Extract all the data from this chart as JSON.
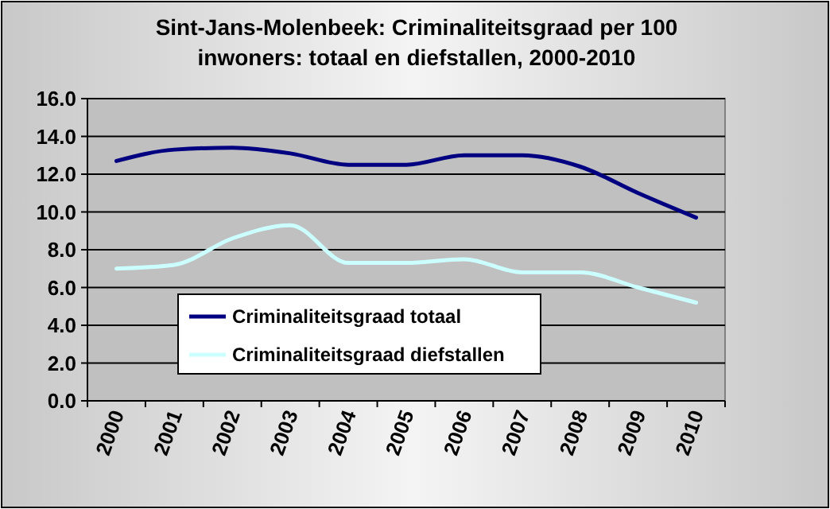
{
  "chart_data": {
    "type": "line",
    "title": "Sint-Jans-Molenbeek: Criminaliteitsgraad per 100 inwoners: totaal en diefstallen, 2000-2010",
    "categories": [
      "2000",
      "2001",
      "2002",
      "2003",
      "2004",
      "2005",
      "2006",
      "2007",
      "2008",
      "2009",
      "2010"
    ],
    "series": [
      {
        "name": "Criminaliteitsgraad totaal",
        "color": "#000080",
        "values": [
          12.7,
          13.3,
          13.4,
          13.1,
          12.5,
          12.5,
          13.0,
          13.0,
          12.4,
          11.0,
          9.7
        ]
      },
      {
        "name": "Criminaliteitsgraad diefstallen",
        "color": "#ccffff",
        "values": [
          7.0,
          7.2,
          8.6,
          9.3,
          7.3,
          7.3,
          7.5,
          6.8,
          6.8,
          6.0,
          5.2
        ]
      }
    ],
    "ylim": [
      0,
      16
    ],
    "yticks": [
      {
        "value": 0,
        "label": "0.0"
      },
      {
        "value": 2,
        "label": "2.0"
      },
      {
        "value": 4,
        "label": "4.0"
      },
      {
        "value": 6,
        "label": "6.0"
      },
      {
        "value": 8,
        "label": "8.0"
      },
      {
        "value": 10,
        "label": "10.0"
      },
      {
        "value": 12,
        "label": "12.0"
      },
      {
        "value": 14,
        "label": "14.0"
      },
      {
        "value": 16,
        "label": "16.0"
      }
    ],
    "grid": "y",
    "legend": "bottom left",
    "marker": "none",
    "line_style": "solid"
  }
}
